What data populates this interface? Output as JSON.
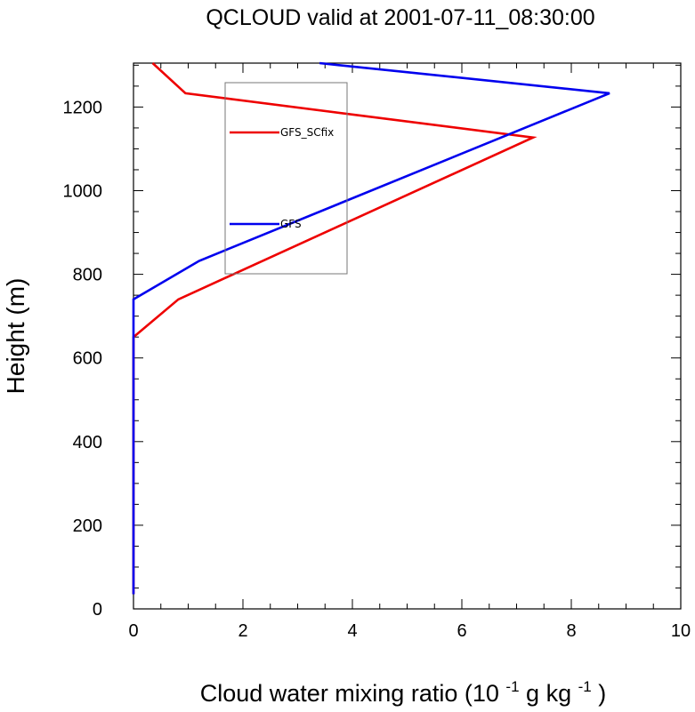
{
  "chart_data": {
    "type": "line",
    "title": "QCLOUD valid at 2001-07-11_08:30:00",
    "xlabel": "Cloud water mixing ratio (10",
    "xlabel_exp1": "-1",
    "xlabel_mid": " g kg",
    "xlabel_exp2": "-1",
    "xlabel_end": ")",
    "ylabel": "Height (m)",
    "xlim": [
      0,
      10
    ],
    "ylim": [
      0,
      1305
    ],
    "xticks": [
      "0",
      "2",
      "4",
      "6",
      "8",
      "10"
    ],
    "yticks": [
      "0",
      "200",
      "400",
      "600",
      "800",
      "1000",
      "1200"
    ],
    "grid": false,
    "legend_position": "upper-left-center",
    "series": [
      {
        "name": "GFS_SCfix",
        "color": "#ee0000",
        "points": [
          [
            0.0,
            35
          ],
          [
            0.0,
            650
          ],
          [
            0.82,
            740
          ],
          [
            7.3,
            1127
          ],
          [
            0.95,
            1233
          ],
          [
            0.35,
            1305
          ]
        ]
      },
      {
        "name": "GFS",
        "color": "#0000ee",
        "points": [
          [
            0.0,
            35
          ],
          [
            0.0,
            740
          ],
          [
            1.2,
            832
          ],
          [
            8.7,
            1233
          ],
          [
            3.4,
            1305
          ]
        ]
      }
    ]
  }
}
